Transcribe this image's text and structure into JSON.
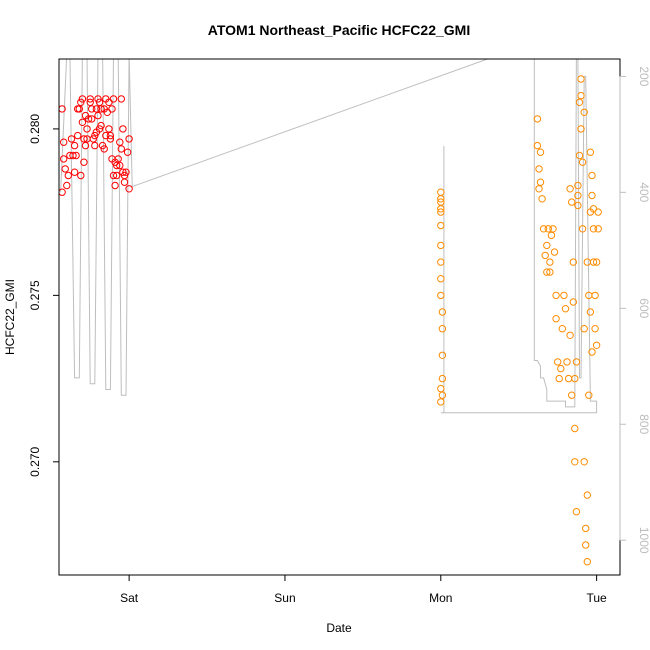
{
  "chart_data": {
    "type": "scatter",
    "title": "ATOM1 Northeast_Pacific HCFC22_GMI",
    "xlabel": "Date",
    "ylabel": "HCFC22_GMI",
    "xlim": [
      -0.45,
      3.15
    ],
    "ylim": [
      0.2666,
      0.2821
    ],
    "x_ticks": [
      {
        "value": 0,
        "label": "Sat"
      },
      {
        "value": 1,
        "label": "Sun"
      },
      {
        "value": 2,
        "label": "Mon"
      },
      {
        "value": 3,
        "label": "Tue"
      }
    ],
    "y_ticks": [
      {
        "value": 0.27,
        "label": "0.270"
      },
      {
        "value": 0.275,
        "label": "0.275"
      },
      {
        "value": 0.28,
        "label": "0.280"
      }
    ],
    "y2lim": [
      1060,
      170
    ],
    "y2_ticks": [
      {
        "value": 200,
        "label": "200"
      },
      {
        "value": 400,
        "label": "400"
      },
      {
        "value": 600,
        "label": "600"
      },
      {
        "value": 800,
        "label": "800"
      },
      {
        "value": 1000,
        "label": "1000"
      }
    ],
    "colors": {
      "series_red": "#ff0000",
      "series_orange": "#ff8c00",
      "pressure_line": "#bebebe",
      "axis": "#000000"
    },
    "pressure_line": {
      "x": [
        -0.44,
        -0.4,
        -0.38,
        -0.35,
        -0.32,
        -0.3,
        -0.27,
        -0.25,
        -0.22,
        -0.2,
        -0.17,
        -0.15,
        -0.12,
        -0.1,
        -0.07,
        -0.05,
        -0.02,
        0.0,
        0.02,
        2.3,
        2.6,
        2.6,
        2.62,
        2.64,
        2.64,
        2.66,
        2.68,
        2.68,
        2.75,
        2.8,
        2.8,
        2.82,
        2.86,
        2.87,
        2.88,
        2.89,
        2.9,
        2.92,
        2.93,
        2.96,
        2.98,
        3.0,
        3.0,
        2.0,
        2.0,
        2.02,
        2.02
      ],
      "y": [
        400,
        160,
        160,
        720,
        720,
        160,
        160,
        730,
        730,
        160,
        160,
        740,
        740,
        160,
        160,
        750,
        750,
        160,
        390,
        170,
        170,
        690,
        690,
        700,
        720,
        720,
        740,
        760,
        760,
        760,
        770,
        770,
        770,
        160,
        160,
        720,
        720,
        200,
        200,
        760,
        760,
        760,
        780,
        780,
        780,
        780,
        320
      ],
      "segments_note": ""
    },
    "series": [
      {
        "color": "#ff0000",
        "x": [
          -0.43,
          -0.42,
          -0.41,
          -0.4,
          -0.39,
          -0.38,
          -0.37,
          -0.36,
          -0.35,
          -0.34,
          -0.33,
          -0.32,
          -0.31,
          -0.3,
          -0.29,
          -0.28,
          -0.27,
          -0.26,
          -0.25,
          -0.24,
          -0.23,
          -0.22,
          -0.21,
          -0.2,
          -0.19,
          -0.18,
          -0.17,
          -0.16,
          -0.15,
          -0.14,
          -0.13,
          -0.12,
          -0.11,
          -0.1,
          -0.09,
          -0.08,
          -0.07,
          -0.06,
          -0.05,
          -0.04,
          -0.03,
          -0.02,
          -0.01,
          0.0,
          -0.43,
          -0.42,
          -0.35,
          -0.33,
          -0.3,
          -0.28,
          -0.25,
          -0.22,
          -0.2,
          -0.18,
          -0.15,
          -0.12,
          -0.1,
          -0.08,
          -0.05,
          -0.03,
          0.0,
          -0.31,
          -0.29,
          -0.27,
          -0.24,
          -0.21,
          -0.19,
          -0.16,
          -0.13,
          -0.11,
          -0.09,
          -0.06,
          -0.04
        ],
        "y": [
          0.2806,
          0.2796,
          0.2788,
          0.2783,
          0.2786,
          0.2792,
          0.2797,
          0.2792,
          0.2787,
          0.2792,
          0.2798,
          0.2806,
          0.2808,
          0.2802,
          0.2797,
          0.2795,
          0.2797,
          0.2803,
          0.2808,
          0.2803,
          0.2797,
          0.2795,
          0.2799,
          0.2804,
          0.2808,
          0.2801,
          0.2795,
          0.2794,
          0.2798,
          0.2805,
          0.2808,
          0.2797,
          0.2791,
          0.2786,
          0.2783,
          0.2786,
          0.2791,
          0.2796,
          0.2794,
          0.2787,
          0.2784,
          0.2787,
          0.2793,
          0.2797,
          0.2781,
          0.2791,
          0.2795,
          0.2806,
          0.2809,
          0.2804,
          0.2809,
          0.2798,
          0.2809,
          0.2806,
          0.2809,
          0.2798,
          0.2809,
          0.2789,
          0.2809,
          0.2786,
          0.2782,
          0.2786,
          0.279,
          0.28,
          0.2806,
          0.2806,
          0.28,
          0.2806,
          0.28,
          0.2806,
          0.279,
          0.2789,
          0.28
        ]
      },
      {
        "color": "#ff8c00",
        "x": [
          2.0,
          2.0,
          2.0,
          2.0,
          2.0,
          2.0,
          2.0,
          2.0,
          2.01,
          2.01,
          2.01,
          2.01,
          2.01,
          2.0,
          2.0,
          2.0,
          2.0,
          2.62,
          2.62,
          2.63,
          2.63,
          2.64,
          2.64,
          2.65,
          2.66,
          2.67,
          2.68,
          2.68,
          2.69,
          2.7,
          2.7,
          2.71,
          2.72,
          2.73,
          2.74,
          2.74,
          2.75,
          2.76,
          2.77,
          2.78,
          2.79,
          2.8,
          2.81,
          2.82,
          2.83,
          2.83,
          2.84,
          2.85,
          2.85,
          2.86,
          2.86,
          2.87,
          2.87,
          2.88,
          2.88,
          2.89,
          2.89,
          2.9,
          2.9,
          2.91,
          2.91,
          2.92,
          2.92,
          2.93,
          2.93,
          2.94,
          2.94,
          2.95,
          2.95,
          2.96,
          2.96,
          2.97,
          2.97,
          2.98,
          2.98,
          2.99,
          2.99,
          3.0,
          3.0,
          3.01,
          3.01,
          2.84,
          2.86,
          2.88,
          2.9,
          2.92,
          2.94,
          2.96,
          2.97,
          2.98
        ],
        "y": [
          0.2781,
          0.2778,
          0.2775,
          0.2771,
          0.2765,
          0.276,
          0.2755,
          0.275,
          0.2745,
          0.274,
          0.2732,
          0.2725,
          0.272,
          0.2718,
          0.2722,
          0.2776,
          0.2779,
          0.2803,
          0.2795,
          0.2788,
          0.2782,
          0.2793,
          0.2784,
          0.2779,
          0.277,
          0.2762,
          0.2757,
          0.2765,
          0.277,
          0.276,
          0.2757,
          0.2768,
          0.277,
          0.2763,
          0.275,
          0.2743,
          0.273,
          0.2725,
          0.2728,
          0.274,
          0.275,
          0.2746,
          0.273,
          0.2725,
          0.2738,
          0.2782,
          0.2778,
          0.276,
          0.2748,
          0.2725,
          0.27,
          0.2685,
          0.273,
          0.2777,
          0.2783,
          0.2792,
          0.2808,
          0.2815,
          0.28,
          0.279,
          0.277,
          0.274,
          0.27,
          0.268,
          0.2675,
          0.267,
          0.269,
          0.272,
          0.275,
          0.2775,
          0.2793,
          0.2786,
          0.278,
          0.277,
          0.276,
          0.275,
          0.274,
          0.2735,
          0.276,
          0.2775,
          0.277,
          0.272,
          0.271,
          0.278,
          0.281,
          0.2805,
          0.276,
          0.2745,
          0.2733,
          0.2776
        ]
      }
    ]
  }
}
